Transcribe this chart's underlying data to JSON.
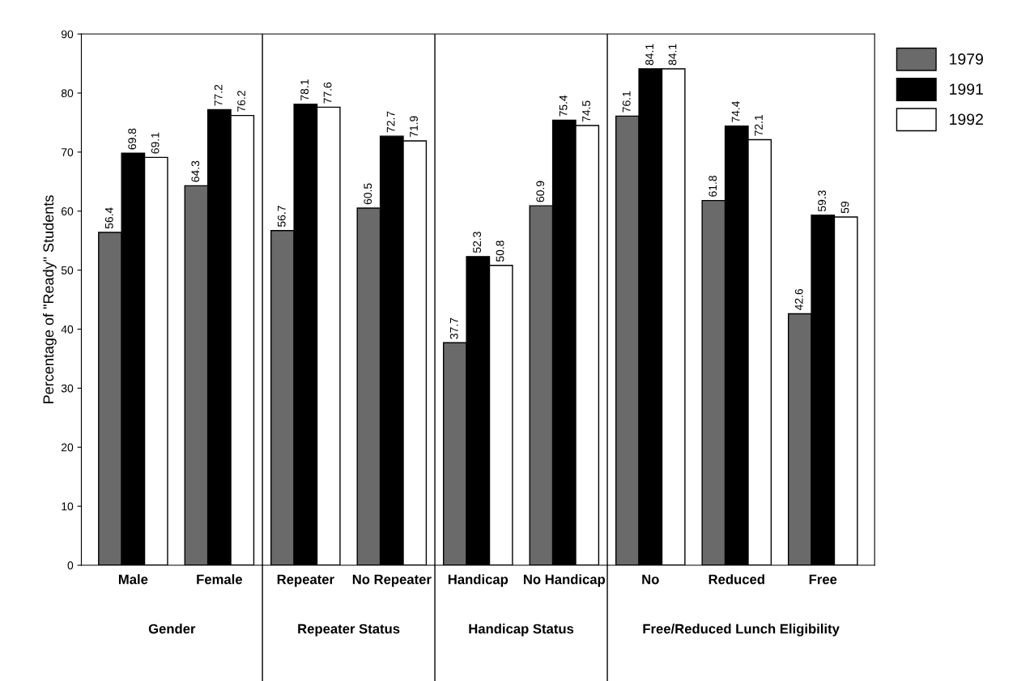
{
  "chart_data": {
    "type": "bar",
    "ylabel": "Percentage of \"Ready\" Students",
    "categories": [
      "Male",
      "Female",
      "Repeater",
      "No Repeater",
      "Handicap",
      "No Handicap",
      "No",
      "Reduced",
      "Free"
    ],
    "series": [
      {
        "name": "1979",
        "color": "#6a6a6a",
        "values": [
          56.4,
          64.3,
          56.7,
          60.5,
          37.7,
          60.9,
          76.1,
          61.8,
          42.6
        ]
      },
      {
        "name": "1991",
        "color": "#000000",
        "values": [
          69.8,
          77.2,
          78.1,
          72.7,
          52.3,
          75.4,
          84.1,
          74.4,
          59.3
        ]
      },
      {
        "name": "1992",
        "color": "#ffffff",
        "values": [
          69.1,
          76.2,
          77.6,
          71.9,
          50.8,
          74.5,
          84.1,
          72.1,
          59
        ]
      }
    ],
    "ylim": [
      0,
      90
    ],
    "yticks": [
      0,
      10,
      20,
      30,
      40,
      50,
      60,
      70,
      80,
      90
    ],
    "annotations": [
      "Gender",
      "Repeater Status",
      "Handicap Status",
      "Free/Reduced Lunch Eligibility"
    ],
    "data_labels": true,
    "legend": "top right",
    "grid": false
  }
}
